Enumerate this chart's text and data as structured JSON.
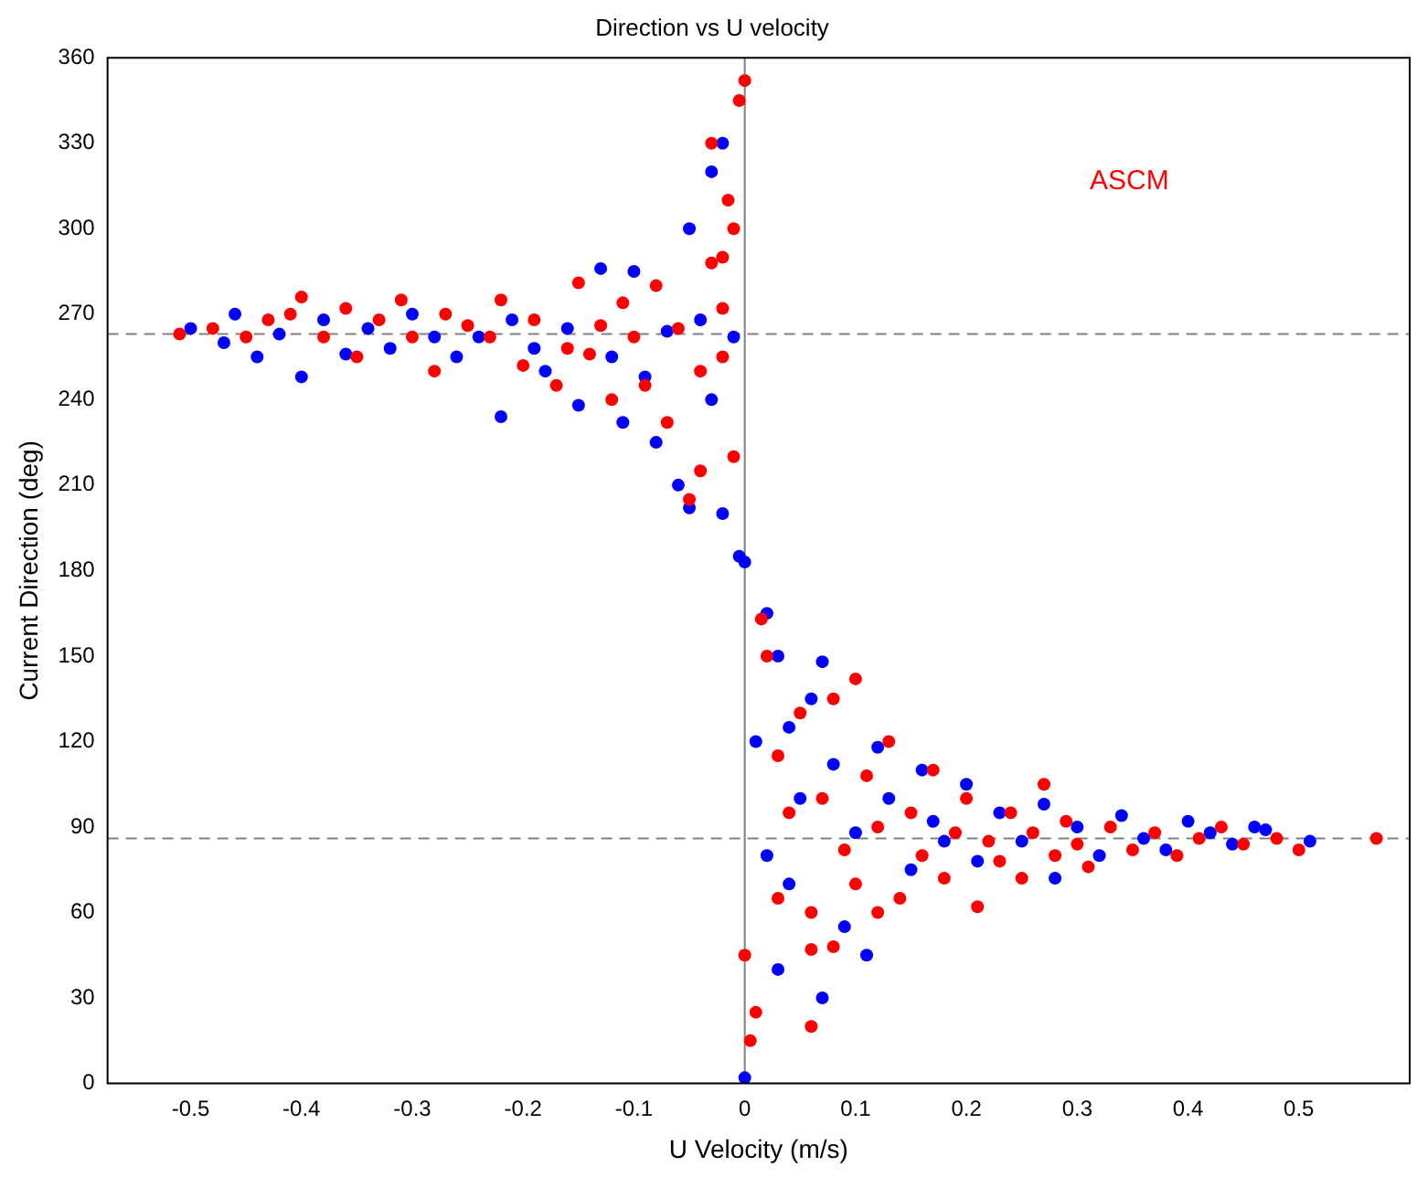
{
  "chart_data": {
    "type": "scatter",
    "title": "Direction vs U velocity",
    "xlabel": "U Velocity (m/s)",
    "ylabel": "Current Direction (deg)",
    "xlim": [
      -0.575,
      0.6
    ],
    "xticks": [
      -0.5,
      -0.4,
      -0.3,
      -0.2,
      -0.1,
      0,
      0.1,
      0.2,
      0.3,
      0.4,
      0.5
    ],
    "ylim": [
      0,
      360
    ],
    "yticks": [
      0,
      30,
      60,
      90,
      120,
      150,
      180,
      210,
      240,
      270,
      300,
      330,
      360
    ],
    "grid": false,
    "legend": "top right",
    "marker": "circle",
    "ref_lines": [
      {
        "axis": "y",
        "value": 263,
        "color": "#808080",
        "line_style": "dashed"
      },
      {
        "axis": "y",
        "value": 86,
        "color": "#808080",
        "line_style": "dashed"
      },
      {
        "axis": "x",
        "value": 0,
        "color": "#808080",
        "line_style": "solid"
      }
    ],
    "series": [
      {
        "name": "ASCM",
        "color": "#ff0000",
        "x": [
          -0.51,
          -0.48,
          -0.45,
          -0.43,
          -0.41,
          -0.4,
          -0.38,
          -0.36,
          -0.35,
          -0.33,
          -0.31,
          -0.3,
          -0.28,
          -0.27,
          -0.25,
          -0.23,
          -0.22,
          -0.2,
          -0.19,
          -0.17,
          -0.16,
          -0.15,
          -0.14,
          -0.13,
          -0.12,
          -0.11,
          -0.1,
          -0.09,
          -0.08,
          -0.07,
          -0.06,
          -0.05,
          -0.04,
          -0.03,
          -0.02,
          -0.03,
          -0.02,
          -0.01,
          -0.01,
          0,
          -0.005,
          -0.015,
          -0.04,
          -0.02,
          0,
          0.005,
          0.01,
          0.015,
          0.02,
          0.03,
          0.03,
          0.04,
          0.05,
          0.06,
          0.06,
          0.07,
          0.08,
          0.09,
          0.1,
          0.1,
          0.11,
          0.12,
          0.13,
          0.14,
          0.15,
          0.16,
          0.17,
          0.18,
          0.19,
          0.2,
          0.21,
          0.22,
          0.23,
          0.24,
          0.25,
          0.26,
          0.27,
          0.28,
          0.29,
          0.3,
          0.31,
          0.33,
          0.35,
          0.37,
          0.39,
          0.41,
          0.43,
          0.45,
          0.48,
          0.5,
          0.57,
          0.06,
          0.12,
          0.08
        ],
        "values": [
          263,
          265,
          262,
          268,
          270,
          276,
          262,
          272,
          255,
          268,
          275,
          262,
          250,
          270,
          266,
          262,
          275,
          252,
          268,
          245,
          258,
          281,
          256,
          266,
          240,
          274,
          262,
          245,
          280,
          232,
          265,
          205,
          250,
          288,
          272,
          330,
          255,
          300,
          220,
          352,
          345,
          310,
          215,
          290,
          45,
          15,
          25,
          163,
          150,
          115,
          65,
          95,
          130,
          60,
          20,
          100,
          48,
          82,
          142,
          70,
          108,
          90,
          120,
          65,
          95,
          80,
          110,
          72,
          88,
          100,
          62,
          85,
          78,
          95,
          72,
          88,
          105,
          80,
          92,
          84,
          76,
          90,
          82,
          88,
          80,
          86,
          90,
          84,
          86,
          82,
          86,
          47,
          60,
          135
        ]
      },
      {
        "color": "#0000ff",
        "x": [
          -0.5,
          -0.47,
          -0.46,
          -0.44,
          -0.42,
          -0.4,
          -0.38,
          -0.36,
          -0.34,
          -0.32,
          -0.3,
          -0.28,
          -0.26,
          -0.24,
          -0.22,
          -0.21,
          -0.19,
          -0.18,
          -0.16,
          -0.15,
          -0.13,
          -0.12,
          -0.11,
          -0.1,
          -0.09,
          -0.08,
          -0.07,
          -0.06,
          -0.05,
          -0.05,
          -0.04,
          -0.03,
          -0.03,
          -0.02,
          -0.02,
          -0.01,
          -0.005,
          0,
          0,
          0.01,
          0.02,
          0.02,
          0.03,
          0.03,
          0.04,
          0.05,
          0.06,
          0.07,
          0.08,
          0.09,
          0.1,
          0.11,
          0.12,
          0.13,
          0.15,
          0.16,
          0.17,
          0.18,
          0.2,
          0.21,
          0.23,
          0.25,
          0.27,
          0.28,
          0.3,
          0.32,
          0.34,
          0.36,
          0.38,
          0.4,
          0.42,
          0.44,
          0.46,
          0.47,
          0.51,
          0.07,
          0.04
        ],
        "values": [
          265,
          260,
          270,
          255,
          263,
          248,
          268,
          256,
          265,
          258,
          270,
          262,
          255,
          262,
          234,
          268,
          258,
          250,
          265,
          238,
          286,
          255,
          232,
          285,
          248,
          225,
          264,
          210,
          300,
          202,
          268,
          320,
          240,
          330,
          200,
          262,
          185,
          183,
          2,
          120,
          80,
          165,
          40,
          150,
          125,
          100,
          135,
          30,
          112,
          55,
          88,
          45,
          118,
          100,
          75,
          110,
          92,
          85,
          105,
          78,
          95,
          85,
          98,
          72,
          90,
          80,
          94,
          86,
          82,
          92,
          88,
          84,
          90,
          89,
          85,
          148,
          70
        ]
      }
    ]
  }
}
